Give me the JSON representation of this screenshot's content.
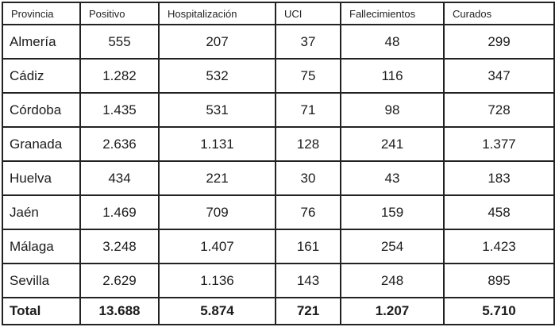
{
  "table": {
    "columns": [
      "Provincia",
      "Positivo",
      "Hospitalización",
      "UCI",
      "Fallecimientos",
      "Curados"
    ],
    "rows": [
      {
        "provincia": "Almería",
        "values": [
          "555",
          "207",
          "37",
          "48",
          "299"
        ]
      },
      {
        "provincia": "Cádiz",
        "values": [
          "1.282",
          "532",
          "75",
          "116",
          "347"
        ]
      },
      {
        "provincia": "Córdoba",
        "values": [
          "1.435",
          "531",
          "71",
          "98",
          "728"
        ]
      },
      {
        "provincia": "Granada",
        "values": [
          "2.636",
          "1.131",
          "128",
          "241",
          "1.377"
        ]
      },
      {
        "provincia": "Huelva",
        "values": [
          "434",
          "221",
          "30",
          "43",
          "183"
        ]
      },
      {
        "provincia": "Jaén",
        "values": [
          "1.469",
          "709",
          "76",
          "159",
          "458"
        ]
      },
      {
        "provincia": "Málaga",
        "values": [
          "3.248",
          "1.407",
          "161",
          "254",
          "1.423"
        ]
      },
      {
        "provincia": "Sevilla",
        "values": [
          "2.629",
          "1.136",
          "143",
          "248",
          "895"
        ]
      }
    ],
    "total": {
      "provincia": "Total",
      "values": [
        "13.688",
        "5.874",
        "721",
        "1.207",
        "5.710"
      ]
    }
  },
  "chart_data": {
    "type": "table",
    "title": "",
    "columns": [
      "Provincia",
      "Positivo",
      "Hospitalización",
      "UCI",
      "Fallecimientos",
      "Curados"
    ],
    "rows": [
      [
        "Almería",
        555,
        207,
        37,
        48,
        299
      ],
      [
        "Cádiz",
        1282,
        532,
        75,
        116,
        347
      ],
      [
        "Córdoba",
        1435,
        531,
        71,
        98,
        728
      ],
      [
        "Granada",
        2636,
        1131,
        128,
        241,
        1377
      ],
      [
        "Huelva",
        434,
        221,
        30,
        43,
        183
      ],
      [
        "Jaén",
        1469,
        709,
        76,
        159,
        458
      ],
      [
        "Málaga",
        3248,
        1407,
        161,
        254,
        1423
      ],
      [
        "Sevilla",
        2629,
        1136,
        143,
        248,
        895
      ],
      [
        "Total",
        13688,
        5874,
        721,
        1207,
        5710
      ]
    ],
    "number_format": "es-ES thousands separator (.)",
    "notes": "Bold total row at bottom; black grid borders; white background"
  },
  "colors": {
    "border": "#222222",
    "text": "#1c1c1c",
    "background": "#ffffff"
  }
}
